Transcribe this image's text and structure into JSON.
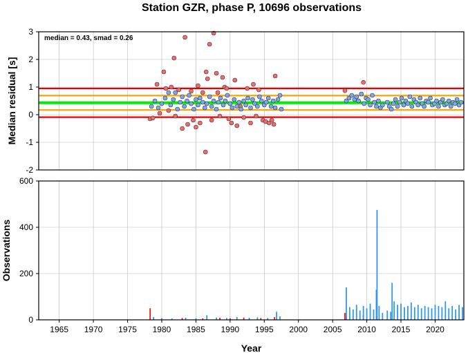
{
  "title": "Station GZR, phase P, 10696 observations",
  "colors": {
    "outlier": "#f26b6b",
    "inlier": "#7aa7f0",
    "median_line": "#00ee00",
    "smad_line": "#f5a300",
    "two_smad_line": "#e60000",
    "bar_blue": "#2f97ee",
    "bar_red": "#e61919"
  },
  "chart_data": [
    {
      "type": "scatter",
      "name": "median-residual",
      "annotation": "median = 0.43, smad = 0.26",
      "xlabel": "",
      "ylabel": "Median residual [s]",
      "xlim": [
        1962,
        2024.2
      ],
      "ylim": [
        -2,
        3
      ],
      "yticks": [
        "-2",
        "-1",
        "0",
        "1",
        "2",
        "3"
      ],
      "grid": true,
      "reference_lines": [
        {
          "y": 0.43,
          "color": "#00ee00",
          "role": "median"
        },
        {
          "y": 0.17,
          "color": "#f5a300",
          "role": "median - smad"
        },
        {
          "y": 0.69,
          "color": "#f5a300",
          "role": "median + smad"
        },
        {
          "y": -0.09,
          "color": "#e60000",
          "role": "median - 2 smad"
        },
        {
          "y": 0.95,
          "color": "#e60000",
          "role": "median + 2 smad"
        }
      ],
      "series": [
        {
          "points": [
            [
              1978.3,
              -0.15
            ],
            [
              1978.7,
              -0.12
            ],
            [
              1979.3,
              1.1
            ],
            [
              1979.7,
              0.05
            ],
            [
              1980.3,
              1.55
            ],
            [
              1980.6,
              0.95
            ],
            [
              1981.0,
              0.15
            ],
            [
              1981.4,
              1.0
            ],
            [
              1981.8,
              2.05
            ],
            [
              1982.0,
              -0.05
            ],
            [
              1982.5,
              0.9
            ],
            [
              1983.0,
              -0.5
            ],
            [
              1983.4,
              2.8
            ],
            [
              1983.8,
              -0.35
            ],
            [
              1984.3,
              0.85
            ],
            [
              1984.6,
              -0.2
            ],
            [
              1985.0,
              -0.45
            ],
            [
              1985.3,
              1.05
            ],
            [
              1985.6,
              -0.3
            ],
            [
              1986.0,
              0.8
            ],
            [
              1986.4,
              -1.35
            ],
            [
              1986.5,
              1.55
            ],
            [
              1986.7,
              1.3
            ],
            [
              1987.0,
              2.55
            ],
            [
              1987.3,
              -0.2
            ],
            [
              1987.6,
              2.95
            ],
            [
              1988.0,
              1.5
            ],
            [
              1988.2,
              0.8
            ],
            [
              1988.5,
              -0.05
            ],
            [
              1988.9,
              1.35
            ],
            [
              1989.2,
              1.0
            ],
            [
              1989.5,
              0.95
            ],
            [
              1989.8,
              -0.15
            ],
            [
              1990.2,
              -0.3
            ],
            [
              1990.7,
              1.25
            ],
            [
              1991.0,
              -0.4
            ],
            [
              1991.5,
              0.3
            ],
            [
              1992.0,
              -0.1
            ],
            [
              1992.5,
              0.95
            ],
            [
              1993.0,
              -0.3
            ],
            [
              1993.4,
              1.1
            ],
            [
              1993.8,
              -0.05
            ],
            [
              1994.2,
              0.9
            ],
            [
              1994.8,
              -0.2
            ],
            [
              1995.2,
              -0.25
            ],
            [
              1995.7,
              -0.3
            ],
            [
              1996.1,
              -0.2
            ],
            [
              1996.4,
              -0.35
            ],
            [
              1996.6,
              1.4
            ],
            [
              2006.8,
              0.87
            ],
            [
              2009.5,
              1.17
            ]
          ]
        },
        {
          "name": "",
          "points": [
            [
              1978.5,
              0.3
            ],
            [
              1979.0,
              0.5
            ],
            [
              1979.5,
              0.25
            ],
            [
              1980.0,
              0.4
            ],
            [
              1980.5,
              0.6
            ],
            [
              1981.0,
              0.8
            ],
            [
              1981.3,
              0.35
            ],
            [
              1981.7,
              0.55
            ],
            [
              1982.0,
              0.8
            ],
            [
              1982.3,
              0.2
            ],
            [
              1982.7,
              0.45
            ],
            [
              1983.0,
              0.65
            ],
            [
              1983.3,
              0.3
            ],
            [
              1983.7,
              0.5
            ],
            [
              1984.0,
              0.7
            ],
            [
              1984.3,
              0.4
            ],
            [
              1984.7,
              0.2
            ],
            [
              1985.0,
              0.55
            ],
            [
              1985.3,
              0.35
            ],
            [
              1985.6,
              0.6
            ],
            [
              1986.0,
              0.45
            ],
            [
              1986.3,
              0.25
            ],
            [
              1986.6,
              0.4
            ],
            [
              1987.0,
              0.65
            ],
            [
              1987.3,
              0.3
            ],
            [
              1987.6,
              0.5
            ],
            [
              1988.0,
              0.2
            ],
            [
              1988.3,
              0.45
            ],
            [
              1988.6,
              0.6
            ],
            [
              1989.0,
              0.35
            ],
            [
              1989.3,
              0.5
            ],
            [
              1989.6,
              0.7
            ],
            [
              1990.0,
              0.4
            ],
            [
              1990.3,
              0.25
            ],
            [
              1990.6,
              0.55
            ],
            [
              1991.0,
              0.3
            ],
            [
              1991.3,
              0.45
            ],
            [
              1991.6,
              0.2
            ],
            [
              1992.0,
              0.5
            ],
            [
              1992.3,
              0.35
            ],
            [
              1992.6,
              0.6
            ],
            [
              1993.0,
              0.25
            ],
            [
              1993.3,
              0.55
            ],
            [
              1993.6,
              0.4
            ],
            [
              1994.0,
              0.3
            ],
            [
              1994.3,
              0.65
            ],
            [
              1994.6,
              0.5
            ],
            [
              1995.0,
              0.35
            ],
            [
              1995.3,
              0.45
            ],
            [
              1995.6,
              0.6
            ],
            [
              1996.0,
              0.3
            ],
            [
              1996.3,
              0.5
            ],
            [
              1996.6,
              0.25
            ],
            [
              1997.0,
              0.55
            ],
            [
              1997.3,
              0.7
            ],
            [
              1997.5,
              0.2
            ],
            [
              2007.0,
              0.5
            ],
            [
              2007.4,
              0.6
            ],
            [
              2007.8,
              0.7
            ],
            [
              2008.2,
              0.55
            ],
            [
              2008.5,
              0.65
            ],
            [
              2008.8,
              0.5
            ],
            [
              2009.2,
              0.75
            ],
            [
              2009.6,
              0.4
            ],
            [
              2009.9,
              0.6
            ],
            [
              2010.2,
              0.55
            ],
            [
              2010.5,
              0.35
            ],
            [
              2010.8,
              0.7
            ],
            [
              2011.1,
              0.45
            ],
            [
              2011.4,
              0.3
            ],
            [
              2011.7,
              0.5
            ],
            [
              2012.0,
              0.25
            ],
            [
              2012.3,
              0.35
            ],
            [
              2013.0,
              0.45
            ],
            [
              2013.3,
              0.3
            ],
            [
              2013.6,
              0.2
            ],
            [
              2013.9,
              0.4
            ],
            [
              2014.2,
              0.55
            ],
            [
              2014.5,
              0.3
            ],
            [
              2014.8,
              0.45
            ],
            [
              2015.1,
              0.6
            ],
            [
              2015.4,
              0.35
            ],
            [
              2015.7,
              0.5
            ],
            [
              2016.0,
              0.4
            ],
            [
              2016.3,
              0.65
            ],
            [
              2016.6,
              0.3
            ],
            [
              2016.9,
              0.55
            ],
            [
              2017.2,
              0.45
            ],
            [
              2017.5,
              0.35
            ],
            [
              2017.8,
              0.6
            ],
            [
              2018.1,
              0.4
            ],
            [
              2018.4,
              0.3
            ],
            [
              2018.7,
              0.5
            ],
            [
              2019.0,
              0.45
            ],
            [
              2019.3,
              0.6
            ],
            [
              2019.6,
              0.35
            ],
            [
              2019.9,
              0.4
            ],
            [
              2020.2,
              0.5
            ],
            [
              2020.5,
              0.3
            ],
            [
              2020.8,
              0.45
            ],
            [
              2021.1,
              0.55
            ],
            [
              2021.4,
              0.35
            ],
            [
              2021.7,
              0.4
            ],
            [
              2022.0,
              0.5
            ],
            [
              2022.3,
              0.3
            ],
            [
              2022.6,
              0.45
            ],
            [
              2022.9,
              0.4
            ],
            [
              2023.2,
              0.55
            ],
            [
              2023.5,
              0.35
            ],
            [
              2023.8,
              0.45
            ]
          ]
        }
      ]
    },
    {
      "type": "bar",
      "name": "observations",
      "xlabel": "Year",
      "ylabel": "Observations",
      "xlim": [
        1962,
        2024.2
      ],
      "ylim": [
        0,
        600
      ],
      "xticks": [
        "1965",
        "1970",
        "1975",
        "1980",
        "1985",
        "1990",
        "1995",
        "2000",
        "2005",
        "2010",
        "2015",
        "2020"
      ],
      "yticks": [
        "0",
        "200",
        "400",
        "600"
      ],
      "grid": true,
      "series": [
        {
          "points": [
            [
              1978.3,
              50
            ],
            [
              1983.0,
              8
            ],
            [
              1986.0,
              6
            ],
            [
              1988.5,
              9
            ],
            [
              1990.0,
              7
            ],
            [
              1992.0,
              10
            ],
            [
              1994.5,
              8
            ],
            [
              1996.5,
              12
            ],
            [
              2006.8,
              30
            ],
            [
              2007.0,
              15
            ],
            [
              2009.5,
              20
            ]
          ]
        },
        {
          "points": [
            [
              1978.8,
              12
            ],
            [
              1980.0,
              8
            ],
            [
              1981.5,
              6
            ],
            [
              1983.5,
              9
            ],
            [
              1985.0,
              7
            ],
            [
              1986.6,
              20
            ],
            [
              1988.0,
              10
            ],
            [
              1989.5,
              8
            ],
            [
              1991.0,
              12
            ],
            [
              1992.8,
              9
            ],
            [
              1994.0,
              11
            ],
            [
              1995.5,
              8
            ],
            [
              1996.8,
              35
            ],
            [
              1997.3,
              15
            ],
            [
              2007.0,
              140
            ],
            [
              2007.5,
              55
            ],
            [
              2008.0,
              45
            ],
            [
              2008.5,
              65
            ],
            [
              2009.0,
              40
            ],
            [
              2009.5,
              60
            ],
            [
              2010.0,
              50
            ],
            [
              2010.5,
              70
            ],
            [
              2011.0,
              45
            ],
            [
              2011.4,
              130
            ],
            [
              2011.5,
              475
            ],
            [
              2011.8,
              60
            ],
            [
              2012.3,
              30
            ],
            [
              2013.0,
              40
            ],
            [
              2013.5,
              35
            ],
            [
              2013.7,
              160
            ],
            [
              2014.0,
              80
            ],
            [
              2014.5,
              65
            ],
            [
              2015.0,
              70
            ],
            [
              2015.5,
              55
            ],
            [
              2016.0,
              60
            ],
            [
              2016.5,
              75
            ],
            [
              2017.0,
              55
            ],
            [
              2017.5,
              65
            ],
            [
              2018.0,
              50
            ],
            [
              2018.5,
              60
            ],
            [
              2019.0,
              55
            ],
            [
              2019.5,
              50
            ],
            [
              2020.0,
              65
            ],
            [
              2020.5,
              60
            ],
            [
              2021.0,
              55
            ],
            [
              2021.5,
              80
            ],
            [
              2022.0,
              50
            ],
            [
              2022.5,
              60
            ],
            [
              2023.0,
              45
            ],
            [
              2023.5,
              65
            ],
            [
              2024.0,
              55
            ]
          ]
        }
      ]
    }
  ]
}
